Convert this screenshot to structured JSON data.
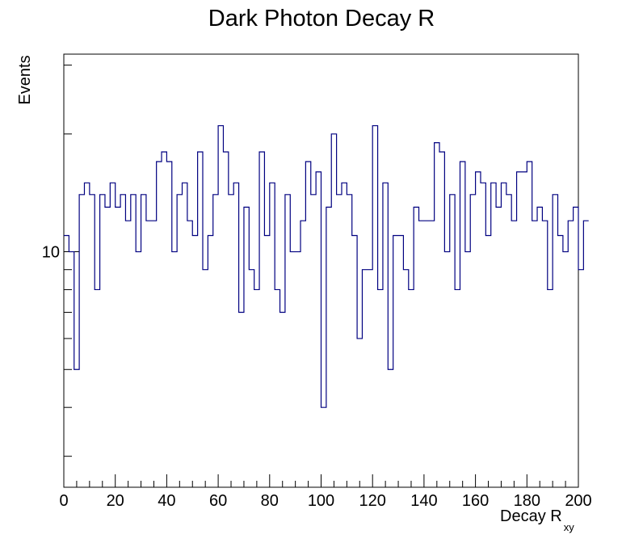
{
  "chart_data": {
    "type": "histogram",
    "title": "Dark Photon Decay R",
    "xlabel_main": "Decay R",
    "xlabel_sub": "xy",
    "ylabel": "Events",
    "xlim": [
      0,
      200
    ],
    "ylim_log": [
      2.5,
      32
    ],
    "y_scale": "log",
    "grid": false,
    "legend": "none",
    "line_color": "#000080",
    "x_ticks": [
      0,
      20,
      40,
      60,
      80,
      100,
      120,
      140,
      160,
      180,
      200
    ],
    "y_tick_labels": [
      {
        "value": 10,
        "label": "10"
      }
    ],
    "bin_width": 2,
    "bin_values": [
      11,
      10,
      5,
      14,
      15,
      14,
      8,
      14,
      13,
      15,
      13,
      14,
      12,
      14,
      10,
      14,
      12,
      12,
      17,
      18,
      17,
      10,
      14,
      15,
      12,
      11,
      18,
      9,
      11,
      14,
      21,
      18,
      14,
      15,
      7,
      13,
      9,
      8,
      18,
      11,
      15,
      8,
      7,
      14,
      10,
      10,
      12,
      17,
      14,
      16,
      4,
      13,
      20,
      14,
      15,
      14,
      11,
      6,
      9,
      9,
      21,
      8,
      15,
      5,
      11,
      11,
      9,
      8,
      13,
      12,
      12,
      12,
      19,
      18,
      10,
      14,
      8,
      17,
      10,
      14,
      16,
      15,
      11,
      15,
      13,
      15,
      14,
      12,
      16,
      16,
      17,
      12,
      13,
      12,
      8,
      14,
      11,
      10,
      12,
      13,
      9,
      12
    ]
  }
}
